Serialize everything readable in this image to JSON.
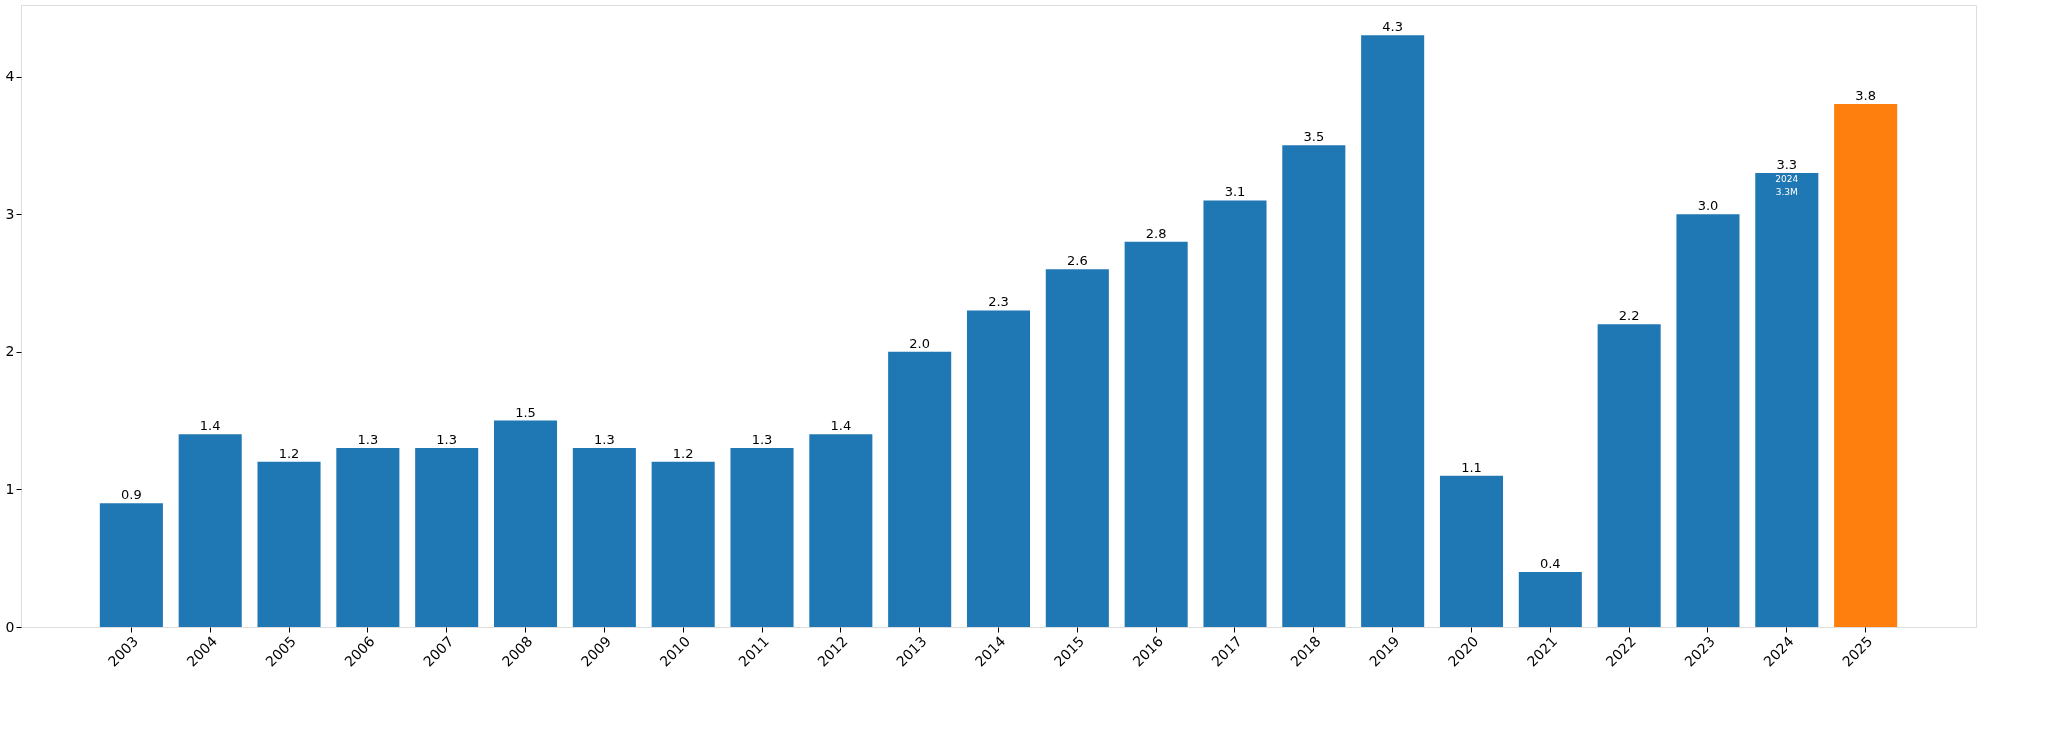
{
  "chart_data": {
    "type": "bar",
    "categories": [
      "2003",
      "2004",
      "2005",
      "2006",
      "2007",
      "2008",
      "2009",
      "2010",
      "2011",
      "2012",
      "2013",
      "2014",
      "2015",
      "2016",
      "2017",
      "2018",
      "2019",
      "2020",
      "2021",
      "2022",
      "2023",
      "2024",
      "2025"
    ],
    "values": [
      0.9,
      1.4,
      1.2,
      1.3,
      1.3,
      1.5,
      1.3,
      1.2,
      1.3,
      1.4,
      2.0,
      2.3,
      2.6,
      2.8,
      3.1,
      3.5,
      4.3,
      1.1,
      0.4,
      2.2,
      3.0,
      3.3,
      3.8
    ],
    "colors": [
      "#1f77b4",
      "#1f77b4",
      "#1f77b4",
      "#1f77b4",
      "#1f77b4",
      "#1f77b4",
      "#1f77b4",
      "#1f77b4",
      "#1f77b4",
      "#1f77b4",
      "#1f77b4",
      "#1f77b4",
      "#1f77b4",
      "#1f77b4",
      "#1f77b4",
      "#1f77b4",
      "#1f77b4",
      "#1f77b4",
      "#1f77b4",
      "#1f77b4",
      "#1f77b4",
      "#1f77b4",
      "#ff7f0e"
    ],
    "ylim": [
      0,
      4.52
    ],
    "yticks": [
      0,
      1,
      2,
      3,
      4
    ],
    "grid": false,
    "value_labels": [
      "0.9",
      "1.4",
      "1.2",
      "1.3",
      "1.3",
      "1.5",
      "1.3",
      "1.2",
      "1.3",
      "1.4",
      "2.0",
      "2.3",
      "2.6",
      "2.8",
      "3.1",
      "3.5",
      "4.3",
      "1.1",
      "0.4",
      "2.2",
      "3.0",
      "3.3",
      "3.8"
    ],
    "annotations": [
      "2024\n3.3M"
    ]
  }
}
